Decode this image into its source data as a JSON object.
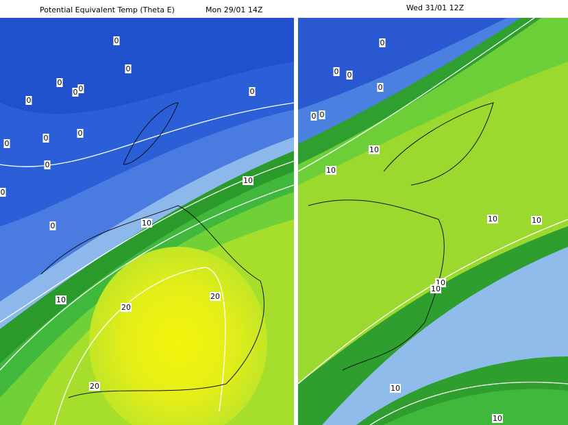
{
  "left_panel": {
    "title": "Potential Equivalent Temp (Theta E)",
    "time": "Mon 29/01 14Z",
    "contour_labels": [
      "0",
      "0",
      "0",
      "0",
      "0",
      "0",
      "0",
      "0",
      "0",
      "0",
      "0",
      "0",
      "0",
      "10",
      "10",
      "10",
      "20",
      "20",
      "20"
    ]
  },
  "right_panel": {
    "time": "Wed 31/01 12Z",
    "contour_labels": [
      "0",
      "0",
      "0",
      "0",
      "0",
      "0",
      "10",
      "10",
      "10",
      "10",
      "10",
      "10",
      "10",
      "10"
    ]
  }
}
